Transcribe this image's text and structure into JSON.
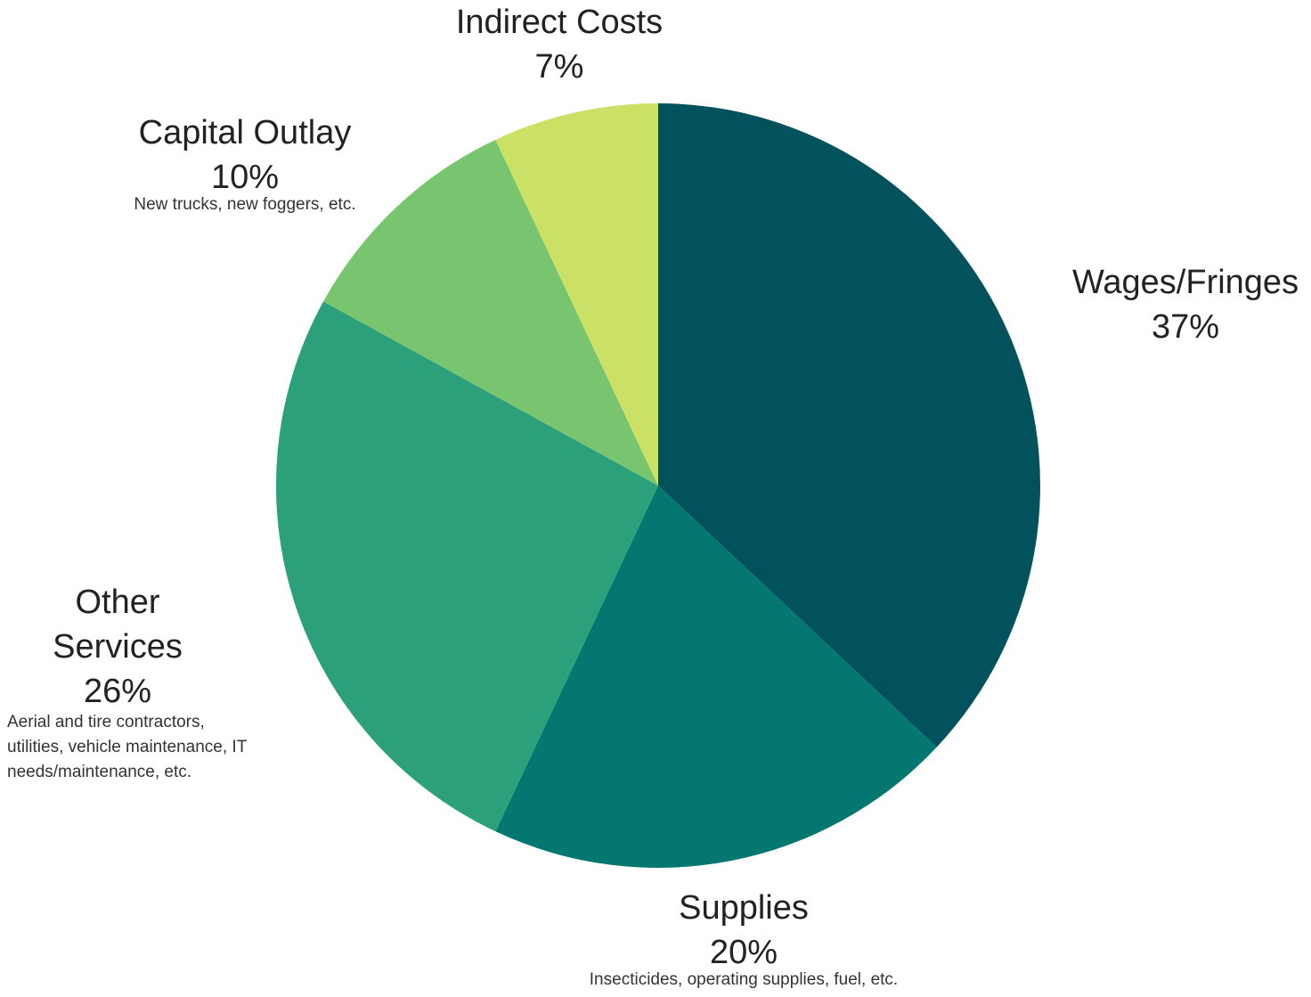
{
  "chart_data": {
    "type": "pie",
    "title": "",
    "start_angle_deg": 0,
    "direction": "clockwise",
    "slices": [
      {
        "label": "Wages/Fringes",
        "value": 37,
        "value_label": "37%",
        "note": "",
        "color": "#02525D"
      },
      {
        "label": "Supplies",
        "value": 20,
        "value_label": "20%",
        "note": "Insecticides, operating supplies, fuel, etc.",
        "color": "#037770"
      },
      {
        "label": "Other Services",
        "value": 26,
        "value_label": "26%",
        "note": "Aerial and tire contractors, utilities, vehicle maintenance, IT needs/maintenance, etc.",
        "color": "#2BA07A"
      },
      {
        "label": "Capital Outlay",
        "value": 10,
        "value_label": "10%",
        "note": "New trucks, new foggers, etc.",
        "color": "#78C46F"
      },
      {
        "label": "Indirect Costs",
        "value": 7,
        "value_label": "7%",
        "note": "",
        "color": "#CBE166"
      }
    ],
    "legend": "none",
    "data_labels": "outside"
  }
}
